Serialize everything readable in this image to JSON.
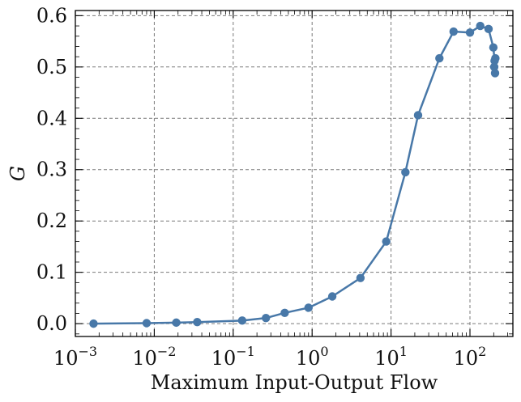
{
  "chart_data": {
    "type": "line",
    "title": "",
    "xlabel": "Maximum Input-Output Flow",
    "ylabel": "G",
    "xscale": "log",
    "xlim": [
      0.001,
      350
    ],
    "ylim": [
      -0.025,
      0.61
    ],
    "grid": true,
    "legend": "none",
    "x_ticks": [
      {
        "value": 0.001,
        "base": "10",
        "exp": "−3"
      },
      {
        "value": 0.01,
        "base": "10",
        "exp": "−2"
      },
      {
        "value": 0.1,
        "base": "10",
        "exp": "−1"
      },
      {
        "value": 1,
        "base": "10",
        "exp": "0"
      },
      {
        "value": 10,
        "base": "10",
        "exp": "1"
      },
      {
        "value": 100,
        "base": "10",
        "exp": "2"
      }
    ],
    "y_ticks": [
      {
        "value": 0.0,
        "label": "0.0"
      },
      {
        "value": 0.1,
        "label": "0.1"
      },
      {
        "value": 0.2,
        "label": "0.2"
      },
      {
        "value": 0.3,
        "label": "0.3"
      },
      {
        "value": 0.4,
        "label": "0.4"
      },
      {
        "value": 0.5,
        "label": "0.5"
      },
      {
        "value": 0.6,
        "label": "0.6"
      }
    ],
    "series": [
      {
        "color": "#4878a8",
        "marker": "circle",
        "x": [
          0.0017,
          0.008,
          0.019,
          0.035,
          0.13,
          0.26,
          0.45,
          0.9,
          1.8,
          4.1,
          8.7,
          15.2,
          22,
          41,
          62,
          100,
          135,
          172,
          198,
          205,
          210,
          208,
          203
        ],
        "y": [
          0.0,
          0.001,
          0.002,
          0.003,
          0.006,
          0.011,
          0.021,
          0.031,
          0.053,
          0.089,
          0.16,
          0.295,
          0.406,
          0.517,
          0.569,
          0.567,
          0.58,
          0.574,
          0.538,
          0.512,
          0.517,
          0.488,
          0.5
        ]
      }
    ]
  }
}
